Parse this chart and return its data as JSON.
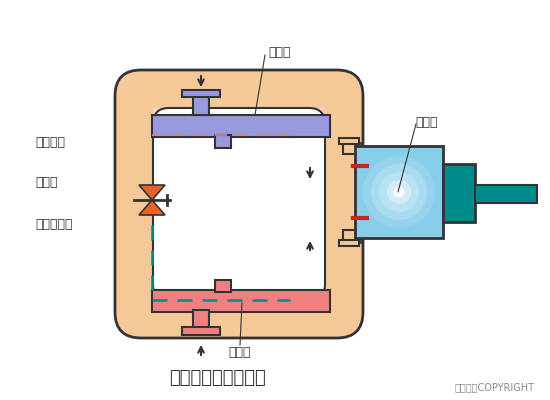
{
  "bg_color": "#ffffff",
  "title": "蒸气压缩式制冷系统",
  "copyright": "东方仿真COPYRIGHT",
  "main_body_color": "#F5C897",
  "main_body_edge": "#333333",
  "condenser_color": "#9999DD",
  "condenser_label": "冷凝器",
  "evaporator_color": "#F08080",
  "evaporator_label": "蒸发器",
  "compressor_body_color": "#ADD8E6",
  "compressor_label": "压缩机",
  "compressor_teal": "#008B8B",
  "expansion_label": "膨胀阀",
  "high_pressure_label": "高压液体",
  "low_pressure_label": "低压湿蒸气",
  "pipe_color": "#F5C897",
  "dashed_line_color": "#008B8B",
  "arrow_color": "#333333",
  "red_accent": "#CC2222"
}
